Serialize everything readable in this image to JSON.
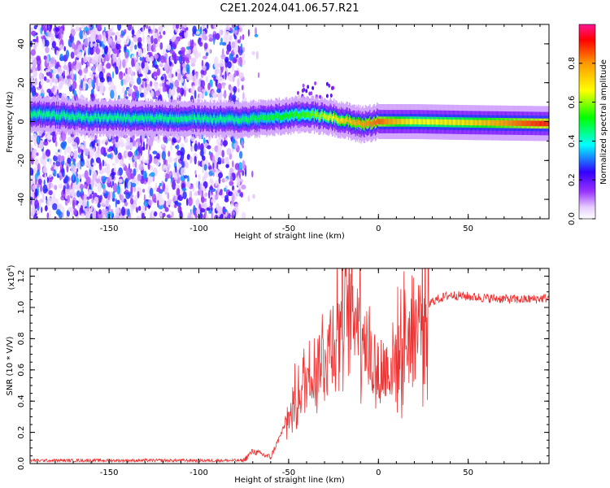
{
  "title": "C2E1.2024.041.06.57.R21",
  "chart_data": [
    {
      "type": "heatmap",
      "xlabel": "Height of straight line (km)",
      "ylabel": "Frequency (Hz)",
      "xlim": [
        -194,
        95
      ],
      "ylim": [
        -50,
        50
      ],
      "x_ticks": [
        -150,
        -100,
        -50,
        0,
        50
      ],
      "y_ticks": [
        -40,
        -20,
        0,
        20,
        40
      ],
      "colorbar": {
        "label": "Normalized spectral amplitude",
        "range": [
          0,
          1
        ],
        "ticks": [
          0.0,
          0.2,
          0.4,
          0.6,
          0.8
        ],
        "colormap": [
          "#ffffff",
          "#e6ccff",
          "#9933ff",
          "#3300ff",
          "#00ffff",
          "#00ff00",
          "#ffff00",
          "#ff0000"
        ]
      },
      "ridge_center_hz": [
        {
          "x": -190,
          "y": 4
        },
        {
          "x": -160,
          "y": 2
        },
        {
          "x": -130,
          "y": 2
        },
        {
          "x": -100,
          "y": 1.5
        },
        {
          "x": -80,
          "y": 1
        },
        {
          "x": -60,
          "y": 2
        },
        {
          "x": -40,
          "y": 4
        },
        {
          "x": -25,
          "y": 2
        },
        {
          "x": -10,
          "y": -1.5
        },
        {
          "x": 0,
          "y": 0
        },
        {
          "x": 20,
          "y": 0
        },
        {
          "x": 50,
          "y": -0.5
        },
        {
          "x": 90,
          "y": -1
        }
      ],
      "ridge_amplitude": [
        {
          "x": -190,
          "y": 0.45
        },
        {
          "x": -80,
          "y": 0.45
        },
        {
          "x": -40,
          "y": 0.55
        },
        {
          "x": -15,
          "y": 0.75
        },
        {
          "x": 0,
          "y": 0.85
        },
        {
          "x": 20,
          "y": 0.65
        },
        {
          "x": 50,
          "y": 0.7
        },
        {
          "x": 90,
          "y": 0.9
        }
      ],
      "noise_region_x": [
        -194,
        -75
      ]
    },
    {
      "type": "line",
      "xlabel": "Height of straight line (km)",
      "ylabel": "SNR (10 * V/V)",
      "y_scale_label": "(x10",
      "y_scale_exp": "4",
      "y_scale_close": ")",
      "xlim": [
        -194,
        95
      ],
      "ylim": [
        0,
        1.25
      ],
      "x_ticks": [
        -150,
        -100,
        -50,
        0,
        50
      ],
      "y_ticks": [
        0.0,
        0.2,
        0.4,
        0.6,
        0.8,
        1.0,
        1.2
      ],
      "color": "#ee3333",
      "series": [
        {
          "envelope": [
            {
              "x": -194,
              "y": 0.02
            },
            {
              "x": -75,
              "y": 0.02
            },
            {
              "x": -70,
              "y": 0.08
            },
            {
              "x": -60,
              "y": 0.04
            },
            {
              "x": -50,
              "y": 0.3
            },
            {
              "x": -40,
              "y": 0.55
            },
            {
              "x": -30,
              "y": 0.7
            },
            {
              "x": -20,
              "y": 0.95
            },
            {
              "x": -10,
              "y": 1.0
            },
            {
              "x": -5,
              "y": 0.7
            },
            {
              "x": 0,
              "y": 0.55
            },
            {
              "x": 10,
              "y": 0.68
            },
            {
              "x": 20,
              "y": 0.9
            },
            {
              "x": 30,
              "y": 1.04
            },
            {
              "x": 40,
              "y": 1.08
            },
            {
              "x": 60,
              "y": 1.06
            },
            {
              "x": 80,
              "y": 1.05
            },
            {
              "x": 95,
              "y": 1.06
            }
          ]
        }
      ]
    }
  ]
}
